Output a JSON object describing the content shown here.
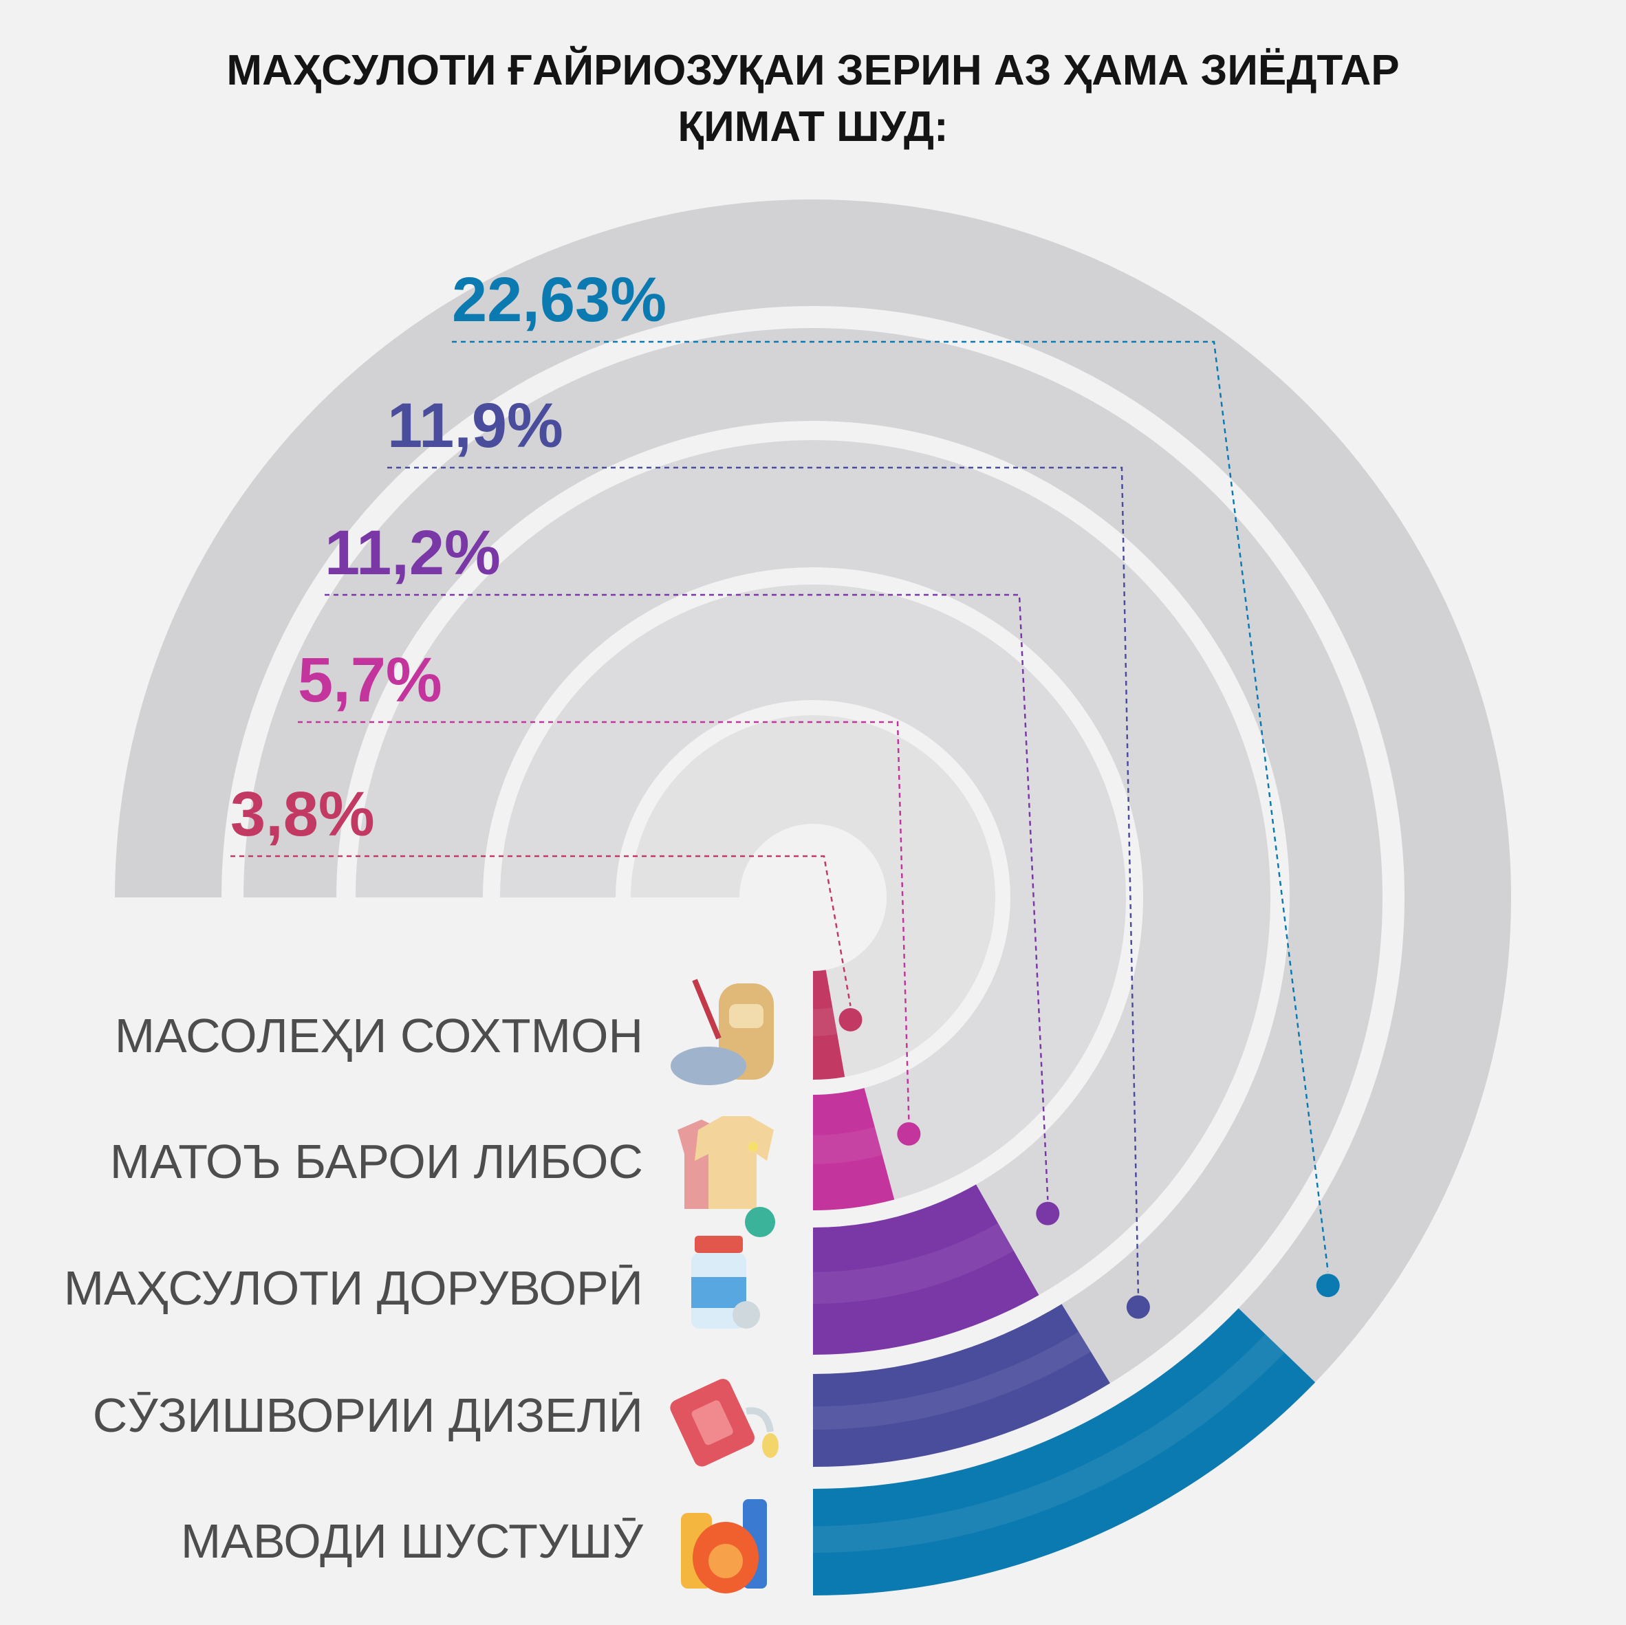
{
  "title": {
    "line1": "МАҲСУЛОТИ ҒАЙРИОЗУҚАИ ЗЕРИН АЗ ҲАМА ЗИЁДТАР",
    "line2": "ҚИМАТ ШУД:"
  },
  "chart_data": {
    "type": "radial bar",
    "title": "МАҲСУЛОТИ ҒАЙРИОЗУҚАИ ЗЕРИН АЗ ҲАМА ЗИЁДТАР ҚИМАТ ШУД:",
    "unit": "%",
    "categories": [
      "МАСОЛЕҲИ СОХТМОН",
      "МАТОЪ БАРОИ ЛИБОС",
      "МАҲСУЛОТИ ДОРУВОРӢ",
      "СӮЗИШВОРИИ ДИЗЕЛӢ",
      "МАВОДИ ШУСТУШӮ"
    ],
    "values": [
      3.8,
      5.7,
      11.2,
      11.9,
      22.63
    ],
    "value_labels": [
      "3,8%",
      "5,7%",
      "11,2%",
      "11,9%",
      "22,63%"
    ],
    "colors": [
      "#c23a64",
      "#c3349c",
      "#7a37a6",
      "#4a4d9c",
      "#0b7ab0"
    ],
    "icons": [
      "construction-materials-icon",
      "clothing-fabric-icon",
      "medicine-icon",
      "diesel-fuel-icon",
      "detergent-icon"
    ]
  }
}
